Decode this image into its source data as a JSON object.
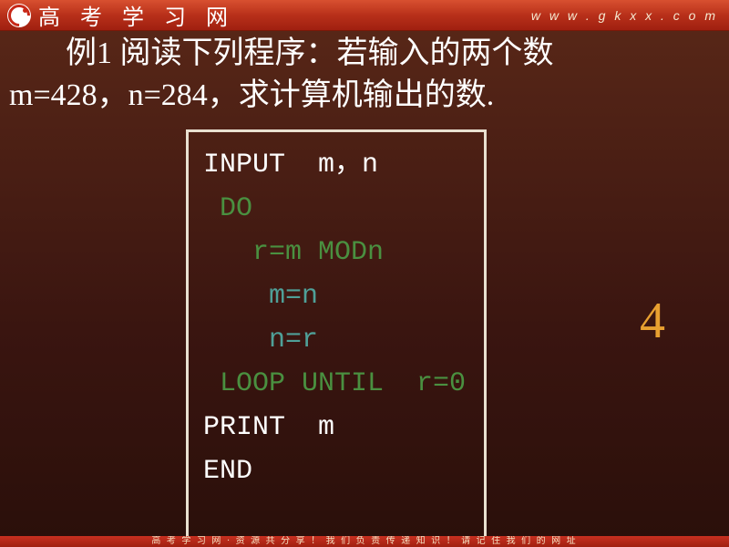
{
  "header": {
    "title": "高 考 学 习 网",
    "url": "w w w . g k x x . c o m"
  },
  "problem": {
    "line1_prefix": "例1 阅读下列程序：若输入的两个数",
    "line2": "m=428，n=284，求计算机输出的数."
  },
  "code": {
    "l1": "INPUT  m，n",
    "l2": " DO",
    "l3": "   r=m MODn",
    "l4": "    m=n",
    "l5": "    n=r",
    "l6": " LOOP UNTIL  r=0",
    "l7": "PRINT  m",
    "l8": "END"
  },
  "answer": "4",
  "footer": "高 考 学 习 网 · 资 源 共 分 享 ！  我 们 负 责 传 递 知 识 ！ 请 记 住 我 们 的 网 址"
}
